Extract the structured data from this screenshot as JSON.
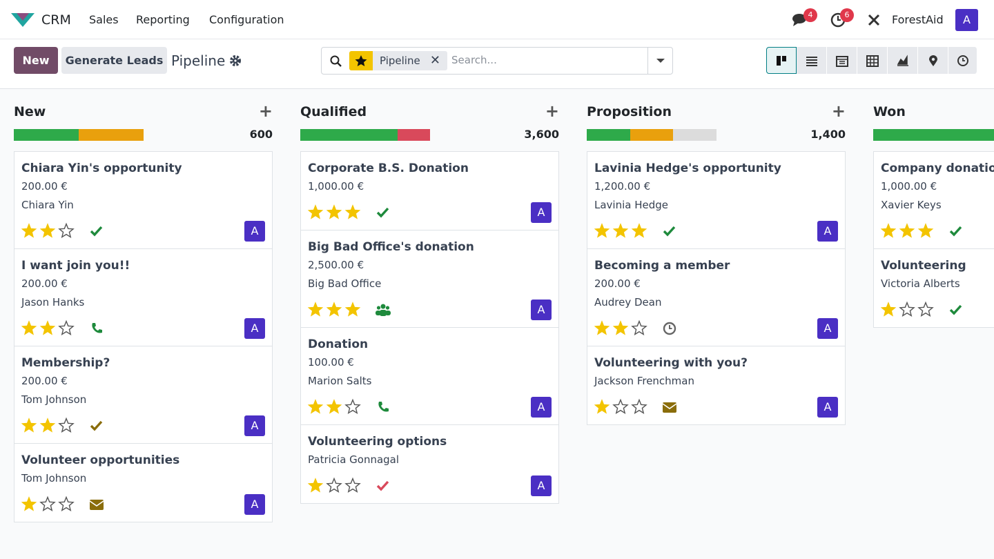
{
  "nav": {
    "app": "CRM",
    "menus": [
      "Sales",
      "Reporting",
      "Configuration"
    ],
    "messages_count": "4",
    "activities_count": "6",
    "company": "ForestAid",
    "avatar": "A"
  },
  "control": {
    "new": "New",
    "generate": "Generate Leads",
    "breadcrumb": "Pipeline",
    "facet": "Pipeline",
    "search_placeholder": "Search..."
  },
  "columns": [
    {
      "name": "New",
      "total": "600",
      "progress": [
        {
          "color": "#2eaa4a",
          "count": 2
        },
        {
          "color": "#e9a00d",
          "count": 2
        }
      ],
      "cards": [
        {
          "title": "Chiara Yin's opportunity",
          "amount": "200.00 €",
          "contact": "Chiara Yin",
          "priority": 2,
          "activity": {
            "icon": "check",
            "color": "#1e8a3c"
          },
          "user": "A"
        },
        {
          "title": "I want join you!!",
          "amount": "200.00 €",
          "contact": "Jason Hanks",
          "priority": 2,
          "activity": {
            "icon": "phone",
            "color": "#1e8a3c"
          },
          "user": "A"
        },
        {
          "title": "Membership?",
          "amount": "200.00 €",
          "contact": "Tom Johnson",
          "priority": 2,
          "activity": {
            "icon": "check",
            "color": "#8a6d0b"
          },
          "user": "A"
        },
        {
          "title": "Volunteer opportunities",
          "contact": "Tom Johnson",
          "priority": 1,
          "activity": {
            "icon": "envelope",
            "color": "#8a6d0b"
          },
          "user": "A"
        }
      ]
    },
    {
      "name": "Qualified",
      "total": "3,600",
      "progress": [
        {
          "color": "#2eaa4a",
          "count": 3
        },
        {
          "color": "#d9495b",
          "count": 1
        }
      ],
      "cards": [
        {
          "title": "Corporate B.S. Donation",
          "amount": "1,000.00 €",
          "priority": 3,
          "activity": {
            "icon": "check",
            "color": "#1e8a3c"
          },
          "user": "A"
        },
        {
          "title": "Big Bad Office's donation",
          "amount": "2,500.00 €",
          "contact": "Big Bad Office",
          "priority": 3,
          "activity": {
            "icon": "users",
            "color": "#1e8a3c"
          },
          "user": "A"
        },
        {
          "title": "Donation",
          "amount": "100.00 €",
          "contact": "Marion Salts",
          "priority": 2,
          "activity": {
            "icon": "phone",
            "color": "#1e8a3c"
          },
          "user": "A"
        },
        {
          "title": "Volunteering options",
          "contact": "Patricia Gonnagal",
          "priority": 1,
          "activity": {
            "icon": "check",
            "color": "#d9495b"
          },
          "user": "A"
        }
      ]
    },
    {
      "name": "Proposition",
      "total": "1,400",
      "progress": [
        {
          "color": "#2eaa4a",
          "count": 1
        },
        {
          "color": "#e9a00d",
          "count": 1
        },
        {
          "color": "#dcdcdc",
          "count": 1
        }
      ],
      "cards": [
        {
          "title": "Lavinia Hedge's opportunity",
          "amount": "1,200.00 €",
          "contact": "Lavinia Hedge",
          "priority": 3,
          "activity": {
            "icon": "check",
            "color": "#1e8a3c"
          },
          "user": "A"
        },
        {
          "title": "Becoming a member",
          "amount": "200.00 €",
          "contact": "Audrey Dean",
          "priority": 2,
          "activity": {
            "icon": "clock",
            "color": "#666666"
          },
          "user": "A"
        },
        {
          "title": "Volunteering with you?",
          "contact": "Jackson Frenchman",
          "priority": 1,
          "activity": {
            "icon": "envelope",
            "color": "#8a6d0b"
          },
          "user": "A"
        }
      ]
    },
    {
      "name": "Won",
      "progress": [
        {
          "color": "#2eaa4a",
          "count": 2
        }
      ],
      "cards": [
        {
          "title": "Company donation",
          "amount": "1,000.00 €",
          "contact": "Xavier Keys",
          "priority": 3,
          "activity": {
            "icon": "check",
            "color": "#1e8a3c"
          }
        },
        {
          "title": "Volunteering",
          "contact": "Victoria Alberts",
          "priority": 1,
          "activity": {
            "icon": "check",
            "color": "#1e8a3c"
          }
        }
      ]
    }
  ]
}
